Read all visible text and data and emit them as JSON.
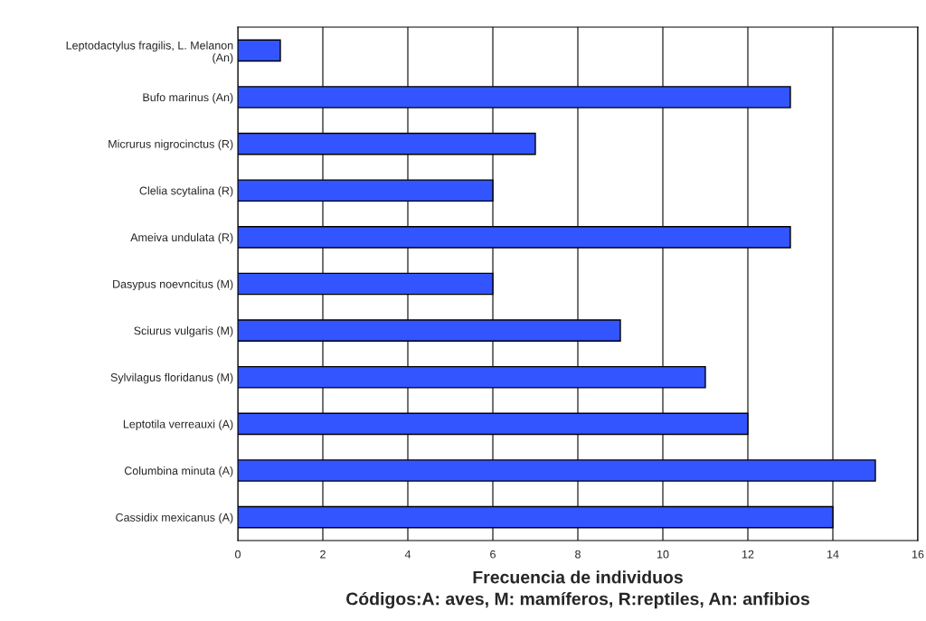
{
  "chart_data": {
    "type": "bar",
    "orientation": "horizontal",
    "categories": [
      "Leptodactylus fragilis, L. Melanon\n(An)",
      "Bufo marinus (An)",
      "Micrurus nigrocinctus (R)",
      "Clelia scytalina (R)",
      "Ameiva undulata (R)",
      "Dasypus noevncitus (M)",
      "Sciurus vulgaris (M)",
      "Sylvilagus floridanus (M)",
      "Leptotila verreauxi (A)",
      "Columbina minuta (A)",
      "Cassidix mexicanus (A)"
    ],
    "values": [
      1,
      13,
      7,
      6,
      13,
      6,
      9,
      11,
      12,
      15,
      14
    ],
    "color": "#3355ff",
    "xlim": [
      0,
      16
    ],
    "xticks": [
      0,
      2,
      4,
      6,
      8,
      10,
      12,
      14,
      16
    ],
    "grid": "x",
    "xlabel": "Frecuencia de individuos",
    "annotations": [
      "Códigos:A: aves, M: mamíferos, R:reptiles, An: anfibios"
    ]
  }
}
